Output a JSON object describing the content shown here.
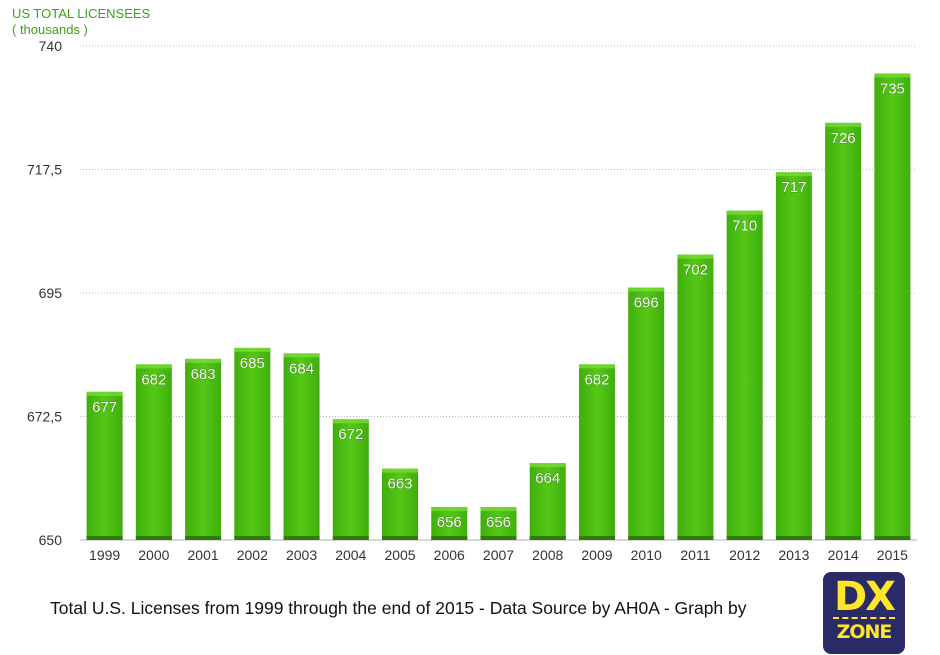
{
  "chart_data": {
    "type": "bar",
    "title": "US TOTAL LICENSEES",
    "ylabel": "( thousands )",
    "xlabel": "",
    "categories": [
      "1999",
      "2000",
      "2001",
      "2002",
      "2003",
      "2004",
      "2005",
      "2006",
      "2007",
      "2008",
      "2009",
      "2010",
      "2011",
      "2012",
      "2013",
      "2014",
      "2015"
    ],
    "values": [
      677,
      682,
      683,
      685,
      684,
      672,
      663,
      656,
      656,
      664,
      682,
      696,
      702,
      710,
      717,
      726,
      735
    ],
    "ylim": [
      650,
      740
    ],
    "yticks": [
      650,
      672.5,
      695,
      717.5,
      740
    ],
    "ytick_labels": [
      "650",
      "672,5",
      "695",
      "717,5",
      "740"
    ],
    "grid": true,
    "bar_color": "#4cc20f",
    "bar_color_dark": "#3a9a0c"
  },
  "caption": "Total U.S. Licenses from 1999 through the end of 2015 - Data Source by  AH0A -  Graph by",
  "logo": {
    "top": "DX",
    "bottom": "ZONE"
  }
}
